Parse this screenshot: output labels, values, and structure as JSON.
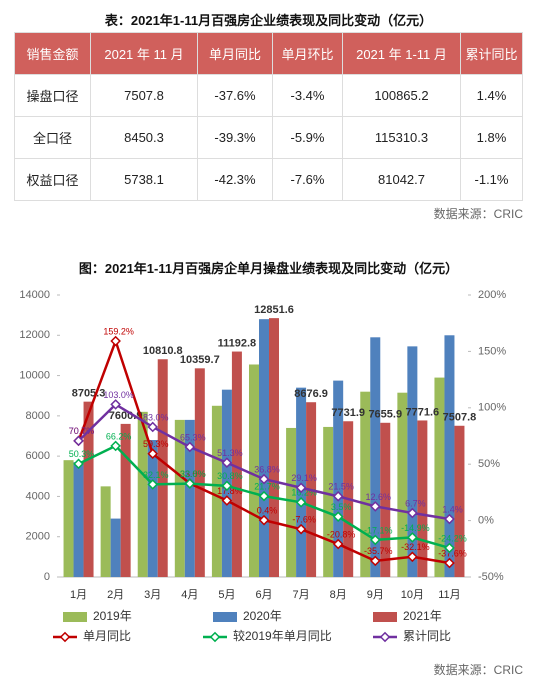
{
  "table": {
    "title": "表：2021年1-11月百强房企业绩表现及同比变动（亿元）",
    "header": [
      "销售金额",
      "2021 年 11 月",
      "单月同比",
      "单月环比",
      "2021 年 1-11 月",
      "累计同比"
    ],
    "rows": [
      [
        "操盘口径",
        "7507.8",
        "-37.6%",
        "-3.4%",
        "100865.2",
        "1.4%"
      ],
      [
        "全口径",
        "8450.3",
        "-39.3%",
        "-5.9%",
        "115310.3",
        "1.8%"
      ],
      [
        "权益口径",
        "5738.1",
        "-42.3%",
        "-7.6%",
        "81042.7",
        "-1.1%"
      ]
    ],
    "source": "数据来源：CRIC"
  },
  "chart_data": {
    "type": "bar",
    "title": "图：2021年1-11月百强房企单月操盘业绩表现及同比变动（亿元）",
    "categories": [
      "1月",
      "2月",
      "3月",
      "4月",
      "5月",
      "6月",
      "7月",
      "8月",
      "9月",
      "10月",
      "11月"
    ],
    "series": [
      {
        "name": "2019年",
        "color": "#9bbb59",
        "values": [
          5800,
          4500,
          8200,
          7800,
          8500,
          10550,
          7400,
          7450,
          9200,
          9150,
          9900
        ]
      },
      {
        "name": "2020年",
        "color": "#4f81bd",
        "values": [
          5700,
          2900,
          6800,
          7800,
          9300,
          12800,
          9400,
          9750,
          11900,
          11450,
          12000
        ]
      },
      {
        "name": "2021年",
        "color": "#c0504d",
        "values": [
          8705.3,
          7600.9,
          10810.8,
          10359.7,
          11192.8,
          12851.6,
          8676.9,
          7731.9,
          7655.9,
          7771.6,
          7507.8
        ],
        "labels": true
      },
      {
        "name": "单月同比",
        "type": "line",
        "axis": "y2",
        "color": "#c00000",
        "values": [
          70.7,
          159.2,
          59.3,
          33.0,
          17.8,
          0.4,
          -7.6,
          -20.8,
          -35.7,
          -32.1,
          -37.6
        ],
        "value_labels": [
          "70.7%",
          "159.2%",
          "59.3%",
          "33.0%",
          "17.8%",
          "0.4%",
          "-7.6%",
          "-20.8%",
          "-35.7%",
          "-32.1%",
          "-37.6%"
        ]
      },
      {
        "name": "较2019年单月同比",
        "type": "line",
        "axis": "y2",
        "color": "#00b050",
        "values": [
          50.3,
          66.2,
          32.1,
          32.8,
          30.8,
          21.7,
          16.2,
          3.5,
          -17.1,
          -14.9,
          -24.2
        ],
        "value_labels": [
          "50.3%",
          "66.2%",
          "32.1%",
          "32.8%",
          "30.8%",
          "21.7%",
          "16.2%",
          "3.5%",
          "-17.1%",
          "-14.9%",
          "-24.2%"
        ]
      },
      {
        "name": "累计同比",
        "type": "line",
        "axis": "y2",
        "color": "#7030a0",
        "values": [
          70.7,
          103.0,
          83.0,
          65.3,
          51.3,
          36.8,
          29.1,
          21.5,
          12.6,
          6.7,
          1.4
        ],
        "value_labels": [
          "70.7%",
          "103.0%",
          "83.0%",
          "65.3%",
          "51.3%",
          "36.8%",
          "29.1%",
          "21.5%",
          "12.6%",
          "6.7%",
          "1.4%"
        ]
      }
    ],
    "ylim": [
      0,
      14000
    ],
    "yticks": [
      0,
      2000,
      4000,
      6000,
      8000,
      10000,
      12000,
      14000
    ],
    "y2lim": [
      -50,
      200
    ],
    "y2ticks": [
      {
        "value": -50,
        "label": "-50%"
      },
      {
        "value": 0,
        "label": "0%"
      },
      {
        "value": 50,
        "label": "50%"
      },
      {
        "value": 100,
        "label": "100%"
      },
      {
        "value": 150,
        "label": "150%"
      },
      {
        "value": 200,
        "label": "200%"
      }
    ],
    "source": "数据来源：CRIC"
  }
}
